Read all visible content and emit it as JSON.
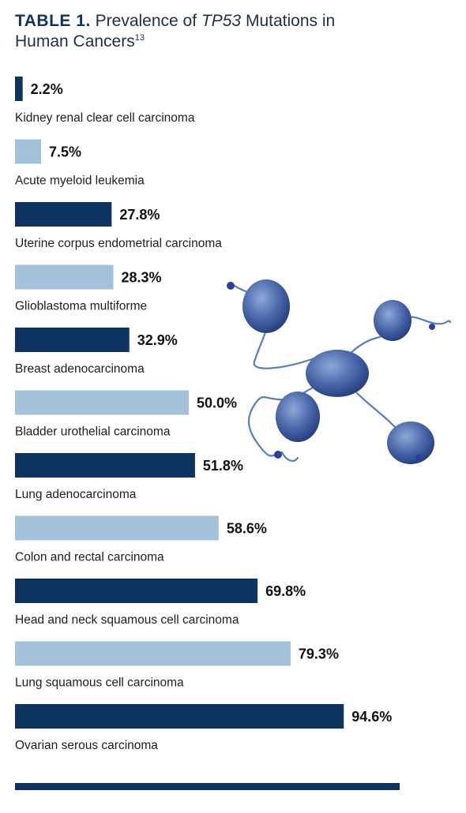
{
  "title": {
    "prefix": "TABLE 1.",
    "text_before": "Prevalence of",
    "gene": "TP53",
    "text_after": "Mutations in Human Cancers",
    "ref": "13"
  },
  "colors": {
    "dark": "#0d3461",
    "light": "#a3c1d8",
    "protein": "#3d5d9e"
  },
  "chart_data": {
    "type": "bar",
    "orientation": "horizontal",
    "unit": "%",
    "xlim": [
      0,
      100
    ],
    "categories": [
      "Kidney renal clear cell carcinoma",
      "Acute myeloid leukemia",
      "Uterine corpus endometrial carcinoma",
      "Glioblastoma multiforme",
      "Breast adenocarcinoma",
      "Bladder urothelial carcinoma",
      "Lung adenocarcinoma",
      "Colon and rectal carcinoma",
      "Head and neck squamous cell carcinoma",
      "Lung squamous cell carcinoma",
      "Ovarian serous carcinoma"
    ],
    "values": [
      2.2,
      7.5,
      27.8,
      28.3,
      32.9,
      50.0,
      51.8,
      58.6,
      69.8,
      79.3,
      94.6
    ],
    "labels": [
      "2.2%",
      "7.5%",
      "27.8%",
      "28.3%",
      "32.9%",
      "50.0%",
      "51.8%",
      "58.6%",
      "69.8%",
      "79.3%",
      "94.6%"
    ],
    "bar_colors": [
      "dark",
      "light",
      "dark",
      "light",
      "dark",
      "light",
      "dark",
      "light",
      "dark",
      "light",
      "dark"
    ]
  }
}
